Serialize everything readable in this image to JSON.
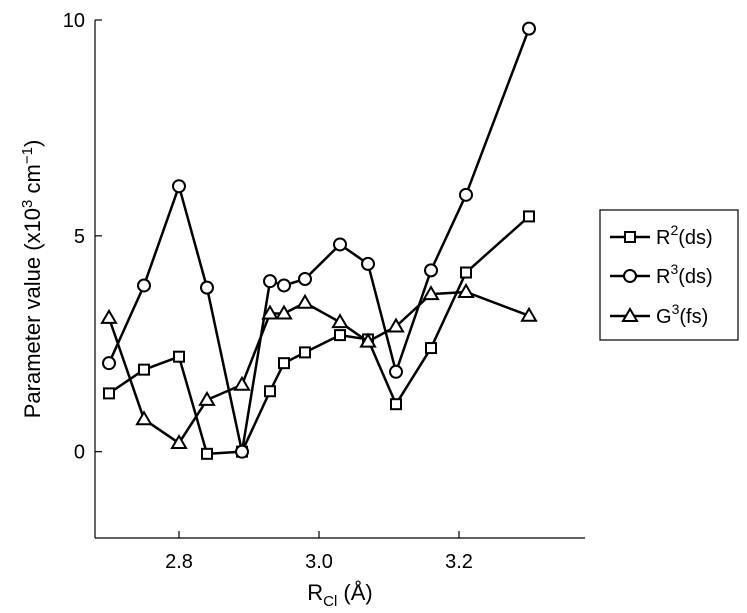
{
  "chart_data": {
    "type": "line",
    "xlabel_main": "R",
    "xlabel_sub": "Cl",
    "xlabel_unit": " (Å)",
    "ylabel_main": "Parameter value (x10",
    "ylabel_sup1": "3",
    "ylabel_mid": " cm",
    "ylabel_sup2": "−1",
    "ylabel_end": ")",
    "xlim": [
      2.68,
      3.38
    ],
    "ylim": [
      -2,
      10
    ],
    "xticks": [
      2.8,
      3.0,
      3.2
    ],
    "xtick_labels": [
      "2.8",
      "3.0",
      "3.2"
    ],
    "yticks": [
      0,
      5,
      10
    ],
    "ytick_labels": [
      "0",
      "5",
      "10"
    ],
    "grid": false,
    "legend_position": "right",
    "series": [
      {
        "name_main": "R",
        "name_sup": "2",
        "name_rest": "(ds)",
        "marker": "square",
        "x": [
          2.7,
          2.75,
          2.8,
          2.84,
          2.89,
          2.93,
          2.95,
          2.98,
          3.03,
          3.07,
          3.11,
          3.16,
          3.21,
          3.3
        ],
        "y": [
          1.35,
          1.9,
          2.2,
          -0.05,
          0.0,
          1.4,
          2.05,
          2.3,
          2.7,
          2.6,
          1.1,
          2.4,
          4.15,
          5.45
        ]
      },
      {
        "name_main": "R",
        "name_sup": "3",
        "name_rest": "(ds)",
        "marker": "circle",
        "x": [
          2.7,
          2.75,
          2.8,
          2.84,
          2.89,
          2.93,
          2.95,
          2.98,
          3.03,
          3.07,
          3.11,
          3.16,
          3.21,
          3.3
        ],
        "y": [
          2.05,
          3.85,
          6.15,
          3.8,
          0.0,
          3.95,
          3.85,
          4.0,
          4.8,
          4.35,
          1.85,
          4.2,
          5.95,
          9.8
        ]
      },
      {
        "name_main": "G",
        "name_sup": "3",
        "name_rest": "(fs)",
        "marker": "triangle",
        "x": [
          2.7,
          2.75,
          2.8,
          2.84,
          2.89,
          2.93,
          2.95,
          2.98,
          3.03,
          3.07,
          3.11,
          3.16,
          3.21,
          3.3
        ],
        "y": [
          3.1,
          0.75,
          0.2,
          1.2,
          1.55,
          3.2,
          3.2,
          3.45,
          3.0,
          2.55,
          2.9,
          3.65,
          3.7,
          3.15
        ]
      }
    ]
  }
}
